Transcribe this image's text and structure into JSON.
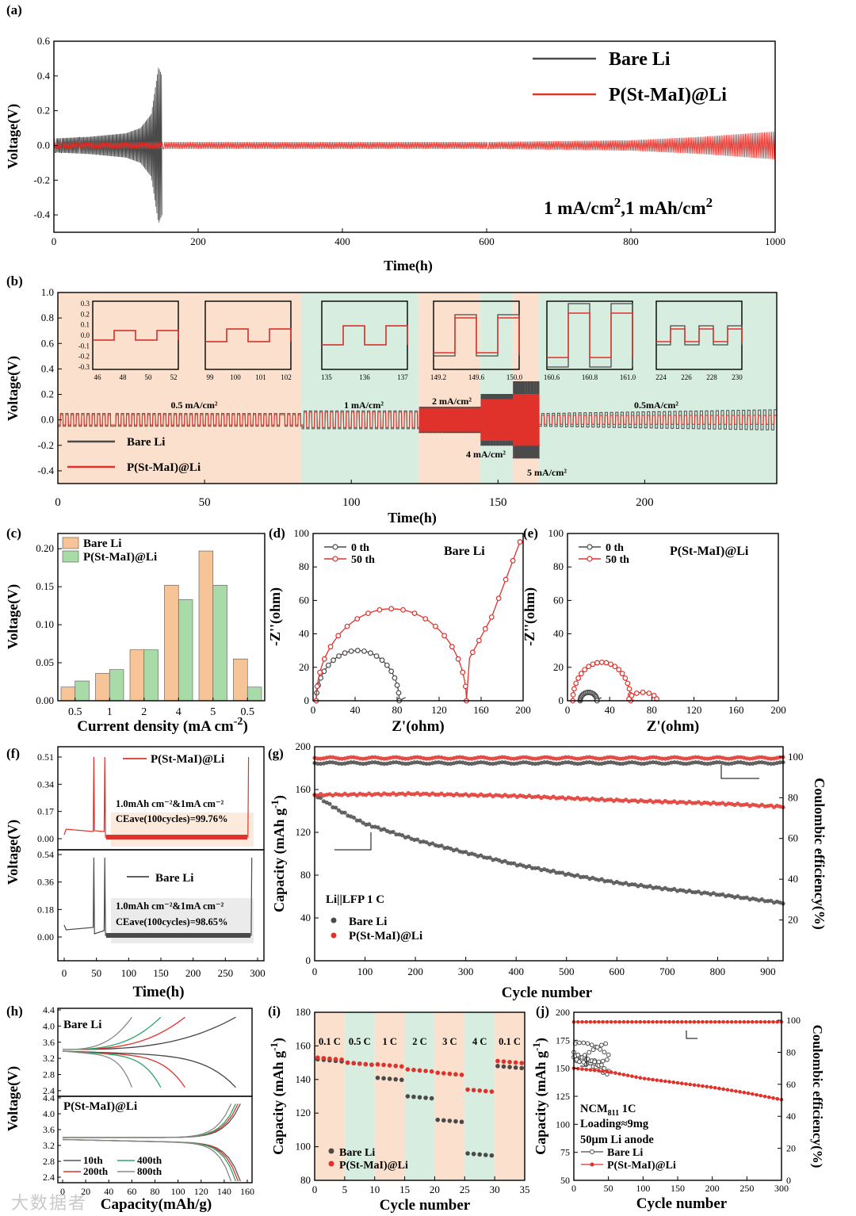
{
  "colors": {
    "bare": "#4a4a4a",
    "coat": "#e0322b",
    "peach": "#fbe1cd",
    "mint": "#d6ede0",
    "axis": "#000000",
    "bar_bare": "#f6c496",
    "bar_coat": "#a8dba8"
  },
  "watermark": "大数据者",
  "chart_data": [
    {
      "panel": "(a)",
      "type": "line",
      "xlabel": "Time(h)",
      "ylabel": "Voltage(V)",
      "xlim": [
        0,
        1000
      ],
      "ylim": [
        -0.5,
        0.6
      ],
      "xticks": [
        "0",
        "200",
        "400",
        "600",
        "800",
        "1000"
      ],
      "yticks": [
        "-0.4",
        "-0.2",
        "0.0",
        "0.2",
        "0.4",
        "0.6"
      ],
      "annotation_main": "1 mA/cm",
      "annotation_sup": "2",
      "annotation_mid": ",1 mAh/cm",
      "annotation_sup2": "2",
      "series": [
        {
          "name": "Bare Li",
          "envelope": [
            [
              0,
              0.04
            ],
            [
              50,
              0.05
            ],
            [
              100,
              0.07
            ],
            [
              120,
              0.1
            ],
            [
              135,
              0.18
            ],
            [
              145,
              0.45
            ],
            [
              150,
              0.4
            ]
          ],
          "end_h": 150
        },
        {
          "name": "P(St-MaI)@Li",
          "envelope": [
            [
              0,
              0.02
            ],
            [
              600,
              0.02
            ],
            [
              800,
              0.03
            ],
            [
              900,
              0.05
            ],
            [
              1000,
              0.08
            ]
          ],
          "end_h": 1000
        }
      ]
    },
    {
      "panel": "(b)",
      "type": "line",
      "xlabel": "Time(h)",
      "ylabel": "Voltage(V)",
      "xlim": [
        0,
        245
      ],
      "ylim": [
        -0.5,
        1.0
      ],
      "xticks": [
        "0",
        "50",
        "100",
        "150",
        "200"
      ],
      "yticks": [
        "-0.4",
        "-0.2",
        "0.0",
        "0.2",
        "0.4",
        "0.6",
        "0.8",
        "1.0"
      ],
      "segments": [
        {
          "label": "0.5 mA/cm²",
          "from": 0,
          "to": 83,
          "bare": 0.05,
          "coat": 0.04
        },
        {
          "label": "1 mA/cm²",
          "from": 83,
          "to": 123,
          "bare": 0.07,
          "coat": 0.06
        },
        {
          "label": "2 mA/cm²",
          "from": 123,
          "to": 144,
          "bare": 0.1,
          "coat": 0.09
        },
        {
          "label": "4 mA/cm²",
          "from": 144,
          "to": 155,
          "bare": 0.2,
          "coat": 0.16
        },
        {
          "label": "5 mA/cm²",
          "from": 155,
          "to": 164,
          "bare": 0.3,
          "coat": 0.2
        },
        {
          "label": "0.5mA/cm²",
          "from": 164,
          "to": 245,
          "bare": 0.05,
          "coat": 0.035
        }
      ],
      "insets": [
        {
          "xticks": [
            "46",
            "48",
            "50",
            "52"
          ],
          "yticks": [
            "0.3",
            "0.2",
            "0.1",
            "0.0",
            "-0.1",
            "-0.2",
            "-0.3"
          ]
        },
        {
          "xticks": [
            "99",
            "100",
            "101",
            "102"
          ]
        },
        {
          "xticks": [
            "135",
            "136",
            "137"
          ]
        },
        {
          "xticks": [
            "149.2",
            "149.6",
            "150.0"
          ]
        },
        {
          "xticks": [
            "160.6",
            "160.8",
            "161.0"
          ]
        },
        {
          "xticks": [
            "224",
            "226",
            "228",
            "230"
          ]
        }
      ],
      "legend": [
        "Bare Li",
        "P(St-MaI)@Li"
      ]
    },
    {
      "panel": "(c)",
      "type": "bar",
      "xlabel": "Current density (mA cm",
      "xlabel_sup": "-2",
      "xlabel_end": ")",
      "ylabel": "Voltage(V)",
      "ylim": [
        0,
        0.22
      ],
      "categories": [
        "0.5",
        "1",
        "2",
        "4",
        "5",
        "0.5"
      ],
      "yticks": [
        "0.00",
        "0.05",
        "0.10",
        "0.15",
        "0.20"
      ],
      "series": [
        {
          "name": "Bare Li",
          "values": [
            0.018,
            0.036,
            0.067,
            0.152,
            0.197,
            0.055
          ]
        },
        {
          "name": "P(St-MaI)@Li",
          "values": [
            0.026,
            0.041,
            0.067,
            0.133,
            0.152,
            0.018
          ]
        }
      ]
    },
    {
      "panel": "(d)",
      "type": "scatter",
      "title": "Bare Li",
      "xlabel": "Z'(ohm)",
      "ylabel": "-Z''(ohm)",
      "xlim": [
        0,
        200
      ],
      "ylim": [
        0,
        100
      ],
      "xticks": [
        "0",
        "40",
        "80",
        "120",
        "160",
        "200"
      ],
      "yticks": [
        "0",
        "20",
        "40",
        "60",
        "80",
        "100"
      ],
      "series": [
        {
          "name": "0 th",
          "arc": {
            "start": 3,
            "end": 82,
            "peak": 30
          },
          "tail_end": 88
        },
        {
          "name": "50 th",
          "arc": {
            "start": 3,
            "end": 146,
            "peak": 55
          },
          "tail": [
            [
              146,
              22
            ],
            [
              170,
              50
            ],
            [
              197,
              95
            ]
          ]
        }
      ]
    },
    {
      "panel": "(e)",
      "type": "scatter",
      "title": "P(St-MaI)@Li",
      "xlabel": "Z'(ohm)",
      "ylabel": "-Z''(ohm)",
      "xlim": [
        0,
        200
      ],
      "ylim": [
        0,
        100
      ],
      "xticks": [
        "0",
        "40",
        "80",
        "120",
        "160",
        "200"
      ],
      "yticks": [
        "0",
        "20",
        "40",
        "60",
        "80",
        "100"
      ],
      "series": [
        {
          "name": "0 th",
          "arc": {
            "start": 12,
            "end": 28,
            "peak": 5
          },
          "tail_end": 32
        },
        {
          "name": "50 th",
          "arc": {
            "start": 5,
            "end": 60,
            "peak": 23
          },
          "extra_arc": {
            "start": 58,
            "end": 85,
            "peak": 5
          }
        }
      ]
    },
    {
      "panel": "(f)",
      "type": "line",
      "xlabel": "Time(h)",
      "ylabel": "Voltage(V)",
      "xticks": [
        "0",
        "50",
        "100",
        "150",
        "200",
        "250",
        "300"
      ],
      "top": {
        "name": "P(St-MaI)@Li",
        "yticks": [
          "0.51",
          "0.34",
          "0.17",
          "0.00"
        ],
        "note1": "1.0mAh cm⁻²&1mA cm⁻²",
        "note2": "CEave(100cycles)=99.76%"
      },
      "bottom": {
        "name": "Bare Li",
        "yticks": [
          "0.54",
          "0.36",
          "0.18",
          "0.00"
        ],
        "note1": "1.0mAh cm⁻²&1mA cm⁻²",
        "note2": "CEave(100cycles)=98.65%"
      }
    },
    {
      "panel": "(g)",
      "type": "scatter",
      "xlabel": "Cycle number",
      "ylabel": "Capacity (mAh g",
      "ylabel_sup": "-1",
      "ylabel_end": ")",
      "y2label": "Coulombic efficiency(%)",
      "xlim": [
        0,
        930
      ],
      "ylim": [
        0,
        200
      ],
      "y2lim": [
        0,
        105
      ],
      "xticks": [
        "0",
        "100",
        "200",
        "300",
        "400",
        "500",
        "600",
        "700",
        "800",
        "900"
      ],
      "yticks": [
        "0",
        "40",
        "80",
        "120",
        "160",
        "200"
      ],
      "y2ticks": [
        "20",
        "40",
        "60",
        "80",
        "100"
      ],
      "note": "Li||LFP 1 C",
      "series": [
        {
          "name": "Bare Li",
          "capacity": [
            [
              0,
              155
            ],
            [
              50,
              140
            ],
            [
              100,
              128
            ],
            [
              200,
              113
            ],
            [
              300,
              101
            ],
            [
              400,
              90
            ],
            [
              500,
              81
            ],
            [
              600,
              73
            ],
            [
              700,
              67
            ],
            [
              800,
              62
            ],
            [
              930,
              54
            ]
          ],
          "ce": 97
        },
        {
          "name": "P(St-MaI)@Li",
          "capacity": [
            [
              0,
              155
            ],
            [
              200,
              156
            ],
            [
              400,
              154
            ],
            [
              600,
              150
            ],
            [
              800,
              147
            ],
            [
              930,
              144
            ]
          ],
          "ce": 99.5
        }
      ]
    },
    {
      "panel": "(h)",
      "type": "line",
      "xlabel": "Capacity(mAh/g)",
      "ylabel": "Voltage(V)",
      "xticks": [
        "0",
        "20",
        "40",
        "60",
        "80",
        "100",
        "120",
        "140",
        "160"
      ],
      "yticks_top": [
        "4.4",
        "4.0",
        "3.6",
        "3.2",
        "2.8",
        "2.4"
      ],
      "yticks_bot": [
        "4.4",
        "4.0",
        "3.6",
        "3.2",
        "2.8",
        "2.4"
      ],
      "top_label": "Bare Li",
      "bottom_label": "P(St-MaI)@Li",
      "legend": [
        "10th",
        "200th",
        "400th",
        "800th"
      ],
      "top_caps": [
        150,
        106,
        85,
        60
      ],
      "bottom_caps": [
        154,
        152,
        150,
        146
      ]
    },
    {
      "panel": "(i)",
      "type": "scatter",
      "xlabel": "Cycle number",
      "ylabel": "Capacity (mAh g",
      "ylabel_sup": "-1",
      "ylabel_end": ")",
      "xlim": [
        0,
        35
      ],
      "ylim": [
        80,
        180
      ],
      "xticks": [
        "0",
        "5",
        "10",
        "15",
        "20",
        "25",
        "30",
        "35"
      ],
      "yticks": [
        "80",
        "100",
        "120",
        "140",
        "160",
        "180"
      ],
      "rates": [
        "0.1 C",
        "0.5 C",
        "1 C",
        "2 C",
        "3 C",
        "4 C",
        "0.1 C"
      ],
      "series": [
        {
          "name": "Bare Li",
          "values": [
            152,
            150,
            141,
            130,
            116,
            96,
            148
          ]
        },
        {
          "name": "P(St-MaI)@Li",
          "values": [
            153,
            150,
            149,
            146,
            144,
            134,
            151
          ]
        }
      ]
    },
    {
      "panel": "(j)",
      "type": "scatter",
      "xlabel": "Cycle number",
      "ylabel": "Capacity (mAh g",
      "ylabel_sup": "-1",
      "ylabel_end": ")",
      "y2label": "Coulombic efficiency(%)",
      "xlim": [
        0,
        300
      ],
      "ylim": [
        50,
        200
      ],
      "y2lim": [
        0,
        105
      ],
      "xticks": [
        "0",
        "50",
        "100",
        "150",
        "200",
        "250",
        "300"
      ],
      "yticks": [
        "50",
        "75",
        "100",
        "125",
        "150",
        "175",
        "200"
      ],
      "y2ticks": [
        "0",
        "20",
        "40",
        "60",
        "80",
        "100"
      ],
      "note1": "NCM",
      "note1_sub": "811",
      "note1_end": "   1C",
      "note2": "Loading≈9mg",
      "note3": "50μm Li anode",
      "series": [
        {
          "name": "Bare Li",
          "capacity": [
            [
              0,
              160
            ],
            [
              10,
              158
            ],
            [
              20,
              156
            ],
            [
              30,
              154
            ],
            [
              40,
              150
            ],
            [
              50,
              145
            ]
          ],
          "ce": 80
        },
        {
          "name": "P(St-MaI)@Li",
          "capacity": [
            [
              0,
              150
            ],
            [
              50,
              147
            ],
            [
              100,
              141
            ],
            [
              150,
              137
            ],
            [
              200,
              133
            ],
            [
              250,
              128
            ],
            [
              300,
              122
            ]
          ],
          "ce": 99
        }
      ]
    }
  ]
}
